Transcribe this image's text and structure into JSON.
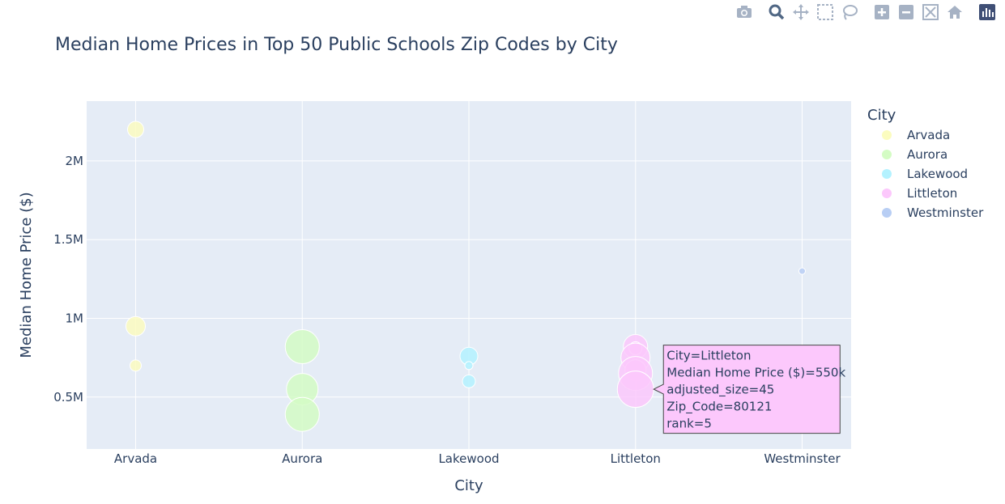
{
  "modebar": {
    "buttons": [
      "camera-icon",
      "zoom-icon",
      "pan-icon",
      "box-select-icon",
      "lasso-select-icon",
      "zoom-in-icon",
      "zoom-out-icon",
      "autoscale-icon",
      "reset-axes-icon",
      "plotly-logo-icon"
    ]
  },
  "colors": {
    "Arvada": "#fbfcbf",
    "Aurora": "#d4fcc4",
    "Lakewood": "#b4f2ff",
    "Littleton": "#fcc8fc",
    "Westminster": "#b8cef4",
    "plot_bg": "#e5ecf6",
    "grid": "#ffffff",
    "text": "#2a3f5f"
  },
  "chart_data": {
    "type": "scatter",
    "title": "Median Home Prices in Top 50 Public Schools Zip Codes by City",
    "xlabel": "City",
    "ylabel": "Median Home Price ($)",
    "categories": [
      "Arvada",
      "Aurora",
      "Lakewood",
      "Littleton",
      "Westminster"
    ],
    "ylim": [
      170000,
      2380000
    ],
    "yticks": [
      500000,
      1000000,
      1500000,
      2000000
    ],
    "ytick_labels": [
      "0.5M",
      "1M",
      "1.5M",
      "2M"
    ],
    "grid": true,
    "legend_title": "City",
    "legend_position": "right",
    "series": [
      {
        "name": "Arvada",
        "points": [
          {
            "x": "Arvada",
            "y": 2200000,
            "size": 20
          },
          {
            "x": "Arvada",
            "y": 950000,
            "size": 24
          },
          {
            "x": "Arvada",
            "y": 700000,
            "size": 14
          }
        ]
      },
      {
        "name": "Aurora",
        "points": [
          {
            "x": "Aurora",
            "y": 820000,
            "size": 42
          },
          {
            "x": "Aurora",
            "y": 550000,
            "size": 39
          },
          {
            "x": "Aurora",
            "y": 390000,
            "size": 42
          }
        ]
      },
      {
        "name": "Lakewood",
        "points": [
          {
            "x": "Lakewood",
            "y": 760000,
            "size": 22
          },
          {
            "x": "Lakewood",
            "y": 700000,
            "size": 10
          },
          {
            "x": "Lakewood",
            "y": 600000,
            "size": 16
          }
        ]
      },
      {
        "name": "Littleton",
        "points": [
          {
            "x": "Littleton",
            "y": 820000,
            "size": 30
          },
          {
            "x": "Littleton",
            "y": 810000,
            "size": 16
          },
          {
            "x": "Littleton",
            "y": 750000,
            "size": 36
          },
          {
            "x": "Littleton",
            "y": 670000,
            "size": 26
          },
          {
            "x": "Littleton",
            "y": 650000,
            "size": 42
          },
          {
            "x": "Littleton",
            "y": 550000,
            "size": 45
          }
        ]
      },
      {
        "name": "Westminster",
        "points": [
          {
            "x": "Westminster",
            "y": 1300000,
            "size": 8
          }
        ]
      }
    ],
    "hover": {
      "series": "Littleton",
      "point_index": 5,
      "lines": [
        "City=Littleton",
        "Median Home Price ($)=550k",
        "adjusted_size=45",
        "Zip_Code=80121",
        "rank=5"
      ]
    }
  }
}
